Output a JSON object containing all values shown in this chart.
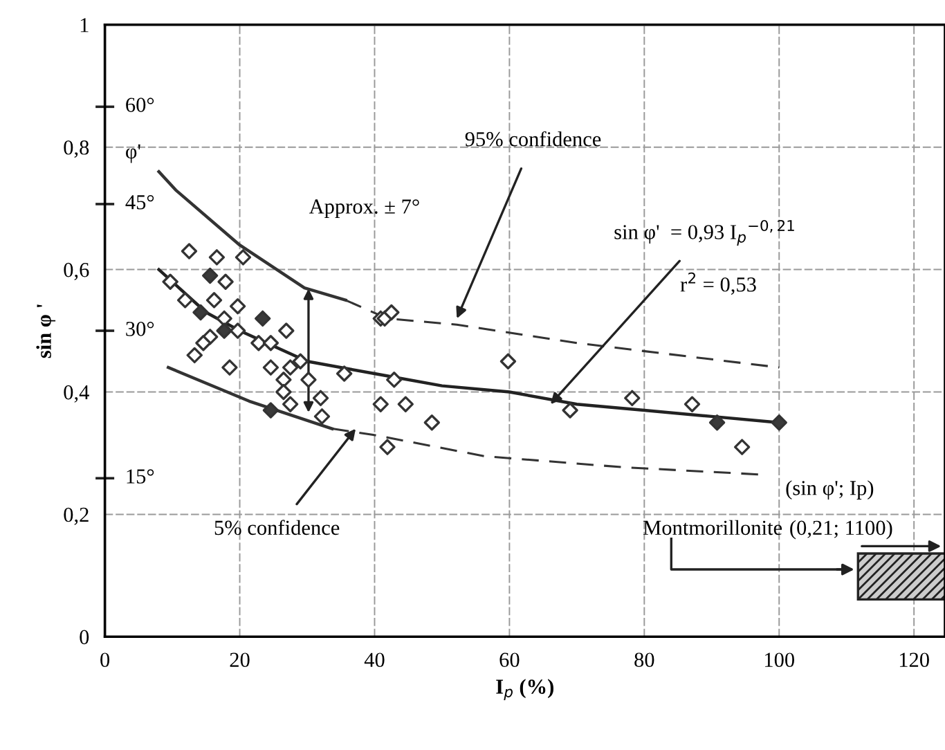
{
  "chart_data": {
    "type": "scatter",
    "xlabel": "I$_{p}$ (%)",
    "ylabel": "sin φ '",
    "xlim": [
      0,
      124.6
    ],
    "ylim": [
      0,
      1
    ],
    "xticks": [
      0,
      20,
      40,
      60,
      80,
      100,
      120
    ],
    "yticks": [
      0,
      {
        "value": 0.2,
        "label": "0,2"
      },
      {
        "value": 0.4,
        "label": "0,4"
      },
      {
        "value": 0.6,
        "label": "0,6"
      },
      {
        "value": 0.8,
        "label": "0,8"
      },
      1
    ],
    "grid": true,
    "series": [
      {
        "marker": "diamond",
        "color": "#ffffff",
        "x": [
          12.5,
          16.6,
          20.5,
          9.7,
          11.9,
          17.9,
          16.2,
          19.7,
          17.7,
          26.9,
          15.6,
          19.7,
          22.8,
          24.6,
          14.6,
          13.3,
          18.5,
          24.6,
          27.5,
          29.0,
          30.2,
          35.5,
          26.5,
          26.5,
          27.5,
          32.0,
          32.2,
          40.9,
          41.5,
          42.5,
          40.9,
          59.8,
          42.9,
          44.6,
          48.5,
          41.9,
          69.0,
          78.2,
          87.1,
          94.5
        ],
        "values": [
          0.63,
          0.62,
          0.62,
          0.58,
          0.55,
          0.58,
          0.55,
          0.54,
          0.52,
          0.5,
          0.49,
          0.5,
          0.48,
          0.48,
          0.48,
          0.46,
          0.44,
          0.44,
          0.44,
          0.45,
          0.42,
          0.43,
          0.42,
          0.4,
          0.38,
          0.39,
          0.36,
          0.52,
          0.52,
          0.53,
          0.38,
          0.45,
          0.42,
          0.38,
          0.35,
          0.31,
          0.37,
          0.39,
          0.38,
          0.31
        ]
      },
      {
        "marker": "diamond",
        "color": "#3a3a3a",
        "x": [
          15.6,
          14.2,
          23.4,
          17.7,
          24.6,
          90.8,
          100
        ],
        "values": [
          0.59,
          0.53,
          0.52,
          0.5,
          0.37,
          0.35,
          0.35
        ]
      },
      {
        "type": "line",
        "color": "#222222",
        "line_style": "solid",
        "x": [
          8,
          15,
          20,
          30,
          40,
          50,
          60,
          70,
          80,
          90,
          100
        ],
        "values": [
          0.6,
          0.53,
          0.5,
          0.45,
          0.43,
          0.41,
          0.4,
          0.38,
          0.37,
          0.36,
          0.35
        ]
      },
      {
        "type": "line",
        "color": "#333333",
        "line_style": "solid",
        "x": [
          8,
          10.5,
          20,
          29.6,
          35.7
        ],
        "values": [
          0.76,
          0.73,
          0.64,
          0.57,
          0.55
        ]
      },
      {
        "type": "line",
        "color": "#333333",
        "line_style": "dashed",
        "x": [
          35.7,
          41.9,
          52.2,
          70,
          100
        ],
        "values": [
          0.55,
          0.52,
          0.51,
          0.48,
          0.44
        ]
      },
      {
        "type": "line",
        "color": "#333333",
        "line_style": "solid",
        "x": [
          9.4,
          21.4,
          33.7
        ],
        "values": [
          0.44,
          0.385,
          0.34
        ]
      },
      {
        "type": "line",
        "color": "#333333",
        "line_style": "dashed",
        "x": [
          33.7,
          39.8,
          56.3,
          76.8,
          97.3
        ],
        "values": [
          0.34,
          0.33,
          0.295,
          0.277,
          0.265
        ]
      }
    ],
    "annotations": [
      {
        "text": "95% confidence",
        "x": 52.2,
        "y": 0.52
      },
      "Approx. ± 7°",
      {
        "text": "sin φ'  = 0,93 I$_{p}$$^{−0,21}$",
        "x": 66.1,
        "y": 0.38
      },
      "r$^{2}$ = 0,53",
      {
        "text": "5% confidence",
        "x": 37.2,
        "y": 0.34
      },
      "(sin φ'; Ip)",
      "(0,21; 1100)",
      "Montmorillonite",
      "φ'",
      "15°",
      "30°",
      "45°",
      "60°"
    ]
  }
}
